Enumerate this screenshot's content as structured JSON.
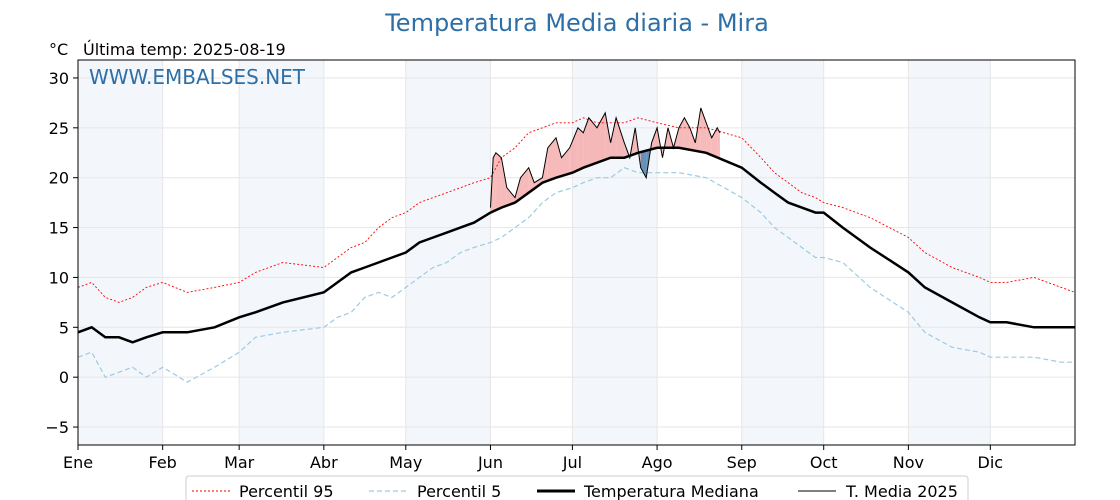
{
  "chart_data": {
    "type": "line",
    "title": "Temperatura Media diaria - Mira",
    "unit_label": "°C",
    "last_temp_label": "Última temp: 2025-08-19",
    "watermark": "WWW.EMBALSES.NET",
    "xlabel": "",
    "ylabel": "",
    "ylim": [
      -6.8,
      31.8
    ],
    "xlim": [
      0,
      365
    ],
    "y_ticks": [
      -5,
      0,
      5,
      10,
      15,
      20,
      25,
      30
    ],
    "x_ticks": [
      {
        "label": "Ene",
        "day": 0
      },
      {
        "label": "Feb",
        "day": 31
      },
      {
        "label": "Mar",
        "day": 59
      },
      {
        "label": "Abr",
        "day": 90
      },
      {
        "label": "May",
        "day": 120
      },
      {
        "label": "Jun",
        "day": 151
      },
      {
        "label": "Jul",
        "day": 181
      },
      {
        "label": "Ago",
        "day": 212
      },
      {
        "label": "Sep",
        "day": 243
      },
      {
        "label": "Oct",
        "day": 273
      },
      {
        "label": "Nov",
        "day": 304
      },
      {
        "label": "Dic",
        "day": 334
      }
    ],
    "grid": true,
    "shaded_month_bands": [
      [
        0,
        31
      ],
      [
        59,
        90
      ],
      [
        120,
        151
      ],
      [
        181,
        212
      ],
      [
        243,
        273
      ],
      [
        304,
        334
      ]
    ],
    "legend_position": "bottom-center",
    "series": [
      {
        "name": "Percentil 95",
        "color": "#ff0000",
        "style": "dotted",
        "points": [
          [
            0,
            9
          ],
          [
            5,
            9.5
          ],
          [
            10,
            8
          ],
          [
            15,
            7.5
          ],
          [
            20,
            8
          ],
          [
            25,
            9
          ],
          [
            31,
            9.5
          ],
          [
            40,
            8.5
          ],
          [
            50,
            9
          ],
          [
            59,
            9.5
          ],
          [
            65,
            10.5
          ],
          [
            75,
            11.5
          ],
          [
            90,
            11
          ],
          [
            95,
            12
          ],
          [
            100,
            13
          ],
          [
            105,
            13.5
          ],
          [
            110,
            15
          ],
          [
            115,
            16
          ],
          [
            120,
            16.5
          ],
          [
            125,
            17.5
          ],
          [
            130,
            18
          ],
          [
            135,
            18.5
          ],
          [
            140,
            19
          ],
          [
            145,
            19.5
          ],
          [
            151,
            20
          ],
          [
            155,
            22
          ],
          [
            160,
            23
          ],
          [
            165,
            24.5
          ],
          [
            170,
            25
          ],
          [
            175,
            25.5
          ],
          [
            181,
            25.5
          ],
          [
            185,
            26
          ],
          [
            190,
            25.5
          ],
          [
            195,
            25.5
          ],
          [
            200,
            25.5
          ],
          [
            205,
            26
          ],
          [
            212,
            25.5
          ],
          [
            220,
            25
          ],
          [
            230,
            25
          ],
          [
            243,
            24
          ],
          [
            250,
            22
          ],
          [
            255,
            20.5
          ],
          [
            260,
            19.5
          ],
          [
            265,
            18.5
          ],
          [
            270,
            18
          ],
          [
            273,
            17.5
          ],
          [
            280,
            17
          ],
          [
            290,
            16
          ],
          [
            304,
            14
          ],
          [
            310,
            12.5
          ],
          [
            320,
            11
          ],
          [
            330,
            10
          ],
          [
            334,
            9.5
          ],
          [
            340,
            9.5
          ],
          [
            350,
            10
          ],
          [
            360,
            9
          ],
          [
            365,
            8.5
          ]
        ]
      },
      {
        "name": "Percentil 5",
        "color": "#9ecae1",
        "style": "dashed",
        "points": [
          [
            0,
            2
          ],
          [
            5,
            2.5
          ],
          [
            10,
            0
          ],
          [
            15,
            0.5
          ],
          [
            20,
            1
          ],
          [
            25,
            0
          ],
          [
            31,
            1
          ],
          [
            40,
            -0.5
          ],
          [
            50,
            1
          ],
          [
            59,
            2.5
          ],
          [
            65,
            4
          ],
          [
            75,
            4.5
          ],
          [
            90,
            5
          ],
          [
            95,
            6
          ],
          [
            100,
            6.5
          ],
          [
            105,
            8
          ],
          [
            110,
            8.5
          ],
          [
            115,
            8
          ],
          [
            120,
            9
          ],
          [
            125,
            10
          ],
          [
            130,
            11
          ],
          [
            135,
            11.5
          ],
          [
            140,
            12.5
          ],
          [
            145,
            13
          ],
          [
            151,
            13.5
          ],
          [
            155,
            14
          ],
          [
            160,
            15
          ],
          [
            165,
            16
          ],
          [
            170,
            17.5
          ],
          [
            175,
            18.5
          ],
          [
            181,
            19
          ],
          [
            185,
            19.5
          ],
          [
            190,
            20
          ],
          [
            195,
            20
          ],
          [
            200,
            21
          ],
          [
            205,
            20.5
          ],
          [
            212,
            20.5
          ],
          [
            220,
            20.5
          ],
          [
            230,
            20
          ],
          [
            243,
            18
          ],
          [
            250,
            16.5
          ],
          [
            255,
            15
          ],
          [
            260,
            14
          ],
          [
            265,
            13
          ],
          [
            270,
            12
          ],
          [
            273,
            12
          ],
          [
            280,
            11.5
          ],
          [
            290,
            9
          ],
          [
            304,
            6.5
          ],
          [
            310,
            4.5
          ],
          [
            320,
            3
          ],
          [
            330,
            2.5
          ],
          [
            334,
            2
          ],
          [
            340,
            2
          ],
          [
            350,
            2
          ],
          [
            360,
            1.5
          ],
          [
            365,
            1.5
          ]
        ]
      },
      {
        "name": "Temperatura Mediana",
        "color": "#000000",
        "style": "solid-thick",
        "points": [
          [
            0,
            4.5
          ],
          [
            5,
            5
          ],
          [
            10,
            4
          ],
          [
            15,
            4
          ],
          [
            20,
            3.5
          ],
          [
            25,
            4
          ],
          [
            31,
            4.5
          ],
          [
            40,
            4.5
          ],
          [
            50,
            5
          ],
          [
            59,
            6
          ],
          [
            65,
            6.5
          ],
          [
            75,
            7.5
          ],
          [
            90,
            8.5
          ],
          [
            95,
            9.5
          ],
          [
            100,
            10.5
          ],
          [
            105,
            11
          ],
          [
            110,
            11.5
          ],
          [
            115,
            12
          ],
          [
            120,
            12.5
          ],
          [
            125,
            13.5
          ],
          [
            130,
            14
          ],
          [
            135,
            14.5
          ],
          [
            140,
            15
          ],
          [
            145,
            15.5
          ],
          [
            151,
            16.5
          ],
          [
            155,
            17
          ],
          [
            160,
            17.5
          ],
          [
            165,
            18.5
          ],
          [
            170,
            19.5
          ],
          [
            175,
            20
          ],
          [
            181,
            20.5
          ],
          [
            185,
            21
          ],
          [
            190,
            21.5
          ],
          [
            195,
            22
          ],
          [
            200,
            22
          ],
          [
            205,
            22.5
          ],
          [
            212,
            23
          ],
          [
            220,
            23
          ],
          [
            230,
            22.5
          ],
          [
            243,
            21
          ],
          [
            250,
            19.5
          ],
          [
            255,
            18.5
          ],
          [
            260,
            17.5
          ],
          [
            265,
            17
          ],
          [
            270,
            16.5
          ],
          [
            273,
            16.5
          ],
          [
            280,
            15
          ],
          [
            290,
            13
          ],
          [
            304,
            10.5
          ],
          [
            310,
            9
          ],
          [
            320,
            7.5
          ],
          [
            330,
            6
          ],
          [
            334,
            5.5
          ],
          [
            340,
            5.5
          ],
          [
            350,
            5
          ],
          [
            360,
            5
          ],
          [
            365,
            5
          ]
        ]
      },
      {
        "name": "T. Media 2025",
        "color": "#000000",
        "style": "solid-thin",
        "points": [
          [
            151,
            17
          ],
          [
            152,
            22
          ],
          [
            153,
            22.5
          ],
          [
            155,
            22
          ],
          [
            157,
            19
          ],
          [
            160,
            18
          ],
          [
            162,
            20
          ],
          [
            165,
            21
          ],
          [
            167,
            19.5
          ],
          [
            170,
            20
          ],
          [
            172,
            23
          ],
          [
            175,
            24
          ],
          [
            177,
            22
          ],
          [
            180,
            23
          ],
          [
            183,
            25
          ],
          [
            185,
            24.5
          ],
          [
            187,
            26
          ],
          [
            190,
            25
          ],
          [
            193,
            26.5
          ],
          [
            195,
            23.5
          ],
          [
            197,
            26
          ],
          [
            200,
            23.5
          ],
          [
            202,
            22
          ],
          [
            204,
            25
          ],
          [
            206,
            21
          ],
          [
            208,
            20
          ],
          [
            210,
            23.5
          ],
          [
            212,
            25
          ],
          [
            214,
            22
          ],
          [
            216,
            25
          ],
          [
            218,
            23
          ],
          [
            220,
            25
          ],
          [
            222,
            26
          ],
          [
            224,
            25
          ],
          [
            226,
            23.5
          ],
          [
            228,
            27
          ],
          [
            230,
            25.5
          ],
          [
            232,
            24
          ],
          [
            234,
            25
          ],
          [
            235,
            24.5
          ]
        ]
      }
    ]
  },
  "legend": {
    "items": [
      "Percentil 95",
      "Percentil 5",
      "Temperatura Mediana",
      "T. Media 2025"
    ]
  }
}
